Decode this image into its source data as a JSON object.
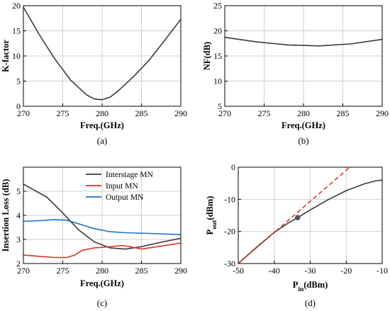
{
  "chart_data": [
    {
      "id": "a",
      "type": "line",
      "caption": "(a)",
      "xlabel": "Freq.(GHz)",
      "ylabel": "K-factor",
      "xlim": [
        270,
        290
      ],
      "ylim": [
        0,
        20
      ],
      "xticks": [
        270,
        275,
        280,
        285,
        290
      ],
      "yticks": [
        0,
        5,
        10,
        15,
        20
      ],
      "grid": true,
      "series": [
        {
          "color": "#3a3a3a",
          "x": [
            270,
            272,
            274,
            276,
            278,
            279,
            280,
            281,
            282,
            284,
            286,
            288,
            290
          ],
          "y": [
            19.7,
            14.3,
            9.4,
            5.2,
            2.3,
            1.45,
            1.3,
            1.8,
            3.0,
            5.9,
            9.2,
            13.2,
            17.3
          ]
        }
      ]
    },
    {
      "id": "b",
      "type": "line",
      "caption": "(b)",
      "xlabel": "Freq.(GHz)",
      "ylabel": "NF(dB)",
      "xlim": [
        270,
        290
      ],
      "ylim": [
        5,
        25
      ],
      "xticks": [
        270,
        275,
        280,
        285,
        290
      ],
      "yticks": [
        5,
        10,
        15,
        20,
        25
      ],
      "grid": true,
      "series": [
        {
          "color": "#3a3a3a",
          "x": [
            270,
            274,
            278,
            282,
            286,
            290
          ],
          "y": [
            18.7,
            17.8,
            17.2,
            17.0,
            17.4,
            18.3
          ]
        }
      ]
    },
    {
      "id": "c",
      "type": "line",
      "caption": "(c)",
      "xlabel": "Freq.(GHz)",
      "ylabel": "Insertion Loss (dB)",
      "xlim": [
        270,
        290
      ],
      "ylim": [
        2,
        6
      ],
      "xticks": [
        270,
        275,
        280,
        285,
        290
      ],
      "yticks": [
        2,
        3,
        4,
        5
      ],
      "grid": true,
      "legend": "top-right",
      "series": [
        {
          "name": "Interstage MN",
          "color": "#3a3a3a",
          "x": [
            270,
            273,
            275,
            277,
            279,
            281,
            283,
            285,
            287,
            290
          ],
          "y": [
            5.3,
            4.75,
            4.1,
            3.4,
            2.9,
            2.65,
            2.6,
            2.7,
            2.85,
            3.05
          ]
        },
        {
          "name": "Input MN",
          "color": "#e0302b",
          "x": [
            270,
            272,
            274,
            275.5,
            276.5,
            277.5,
            279,
            281,
            282.5,
            283.5,
            285,
            287,
            290
          ],
          "y": [
            2.35,
            2.3,
            2.25,
            2.25,
            2.35,
            2.55,
            2.65,
            2.7,
            2.75,
            2.7,
            2.6,
            2.7,
            2.85
          ]
        },
        {
          "name": "Output MN",
          "color": "#1f6fc5",
          "x": [
            270,
            272,
            274,
            275.5,
            277,
            279,
            281,
            283,
            286,
            290
          ],
          "y": [
            3.75,
            3.78,
            3.82,
            3.8,
            3.65,
            3.45,
            3.32,
            3.28,
            3.25,
            3.2
          ]
        }
      ]
    },
    {
      "id": "d",
      "type": "line",
      "caption": "(d)",
      "xlabel": "P_in(dBm)",
      "ylabel": "P_out(dBm)",
      "xlim": [
        -50,
        -10
      ],
      "ylim": [
        -30,
        0
      ],
      "xticks": [
        -50,
        -40,
        -30,
        -20,
        -10
      ],
      "ytick_labels": [
        "0",
        "-10",
        "-20",
        "-30"
      ],
      "yticks": [
        0,
        -10,
        -20,
        -30
      ],
      "grid": true,
      "series": [
        {
          "color": "#3a3a3a",
          "style": "solid",
          "x": [
            -50,
            -45,
            -40,
            -36,
            -33.5,
            -30,
            -25,
            -20,
            -15,
            -12,
            -10
          ],
          "y": [
            -30,
            -25,
            -20.3,
            -17.3,
            -15.7,
            -13.3,
            -10.1,
            -7.3,
            -5.2,
            -4.3,
            -4.0
          ]
        },
        {
          "color": "#e0302b",
          "style": "dashed",
          "x": [
            -50,
            -19
          ],
          "y": [
            -30,
            0
          ]
        }
      ],
      "marker": {
        "x": -33.5,
        "y": -15.7,
        "color": "#555555"
      }
    }
  ]
}
